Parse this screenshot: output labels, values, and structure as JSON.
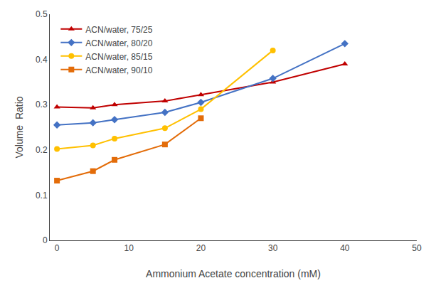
{
  "chart_data": {
    "type": "line",
    "xlabel": "Ammonium Acetate concentration (mM)",
    "ylabel": "Volume  Ratio",
    "series": [
      {
        "name": "ACN/water, 75/25",
        "color": "#C00000",
        "marker": "triangle-up",
        "x": [
          0,
          5,
          8,
          15,
          20,
          30,
          40
        ],
        "values": [
          0.295,
          0.293,
          0.3,
          0.308,
          0.322,
          0.35,
          0.39
        ]
      },
      {
        "name": "ACN/water, 80/20",
        "color": "#4472C4",
        "marker": "diamond",
        "x": [
          0,
          5,
          8,
          15,
          20,
          30,
          40
        ],
        "values": [
          0.255,
          0.26,
          0.267,
          0.283,
          0.305,
          0.358,
          0.435
        ]
      },
      {
        "name": "ACN/water, 85/15",
        "color": "#FFC000",
        "marker": "circle",
        "x": [
          0,
          5,
          8,
          15,
          20,
          30
        ],
        "values": [
          0.202,
          0.21,
          0.225,
          0.248,
          0.29,
          0.42
        ]
      },
      {
        "name": "ACN/water, 90/10",
        "color": "#E36C09",
        "marker": "square",
        "x": [
          0,
          5,
          8,
          15,
          20
        ],
        "values": [
          0.132,
          0.153,
          0.178,
          0.212,
          0.27
        ]
      }
    ],
    "xlim": [
      -1,
      50
    ],
    "xticks": [
      0,
      10,
      20,
      30,
      40,
      50
    ],
    "ylim": [
      0,
      0.5
    ],
    "yticks": [
      0,
      0.1,
      0.2,
      0.3,
      0.4,
      0.5
    ],
    "grid": false,
    "legend": "upper left"
  }
}
